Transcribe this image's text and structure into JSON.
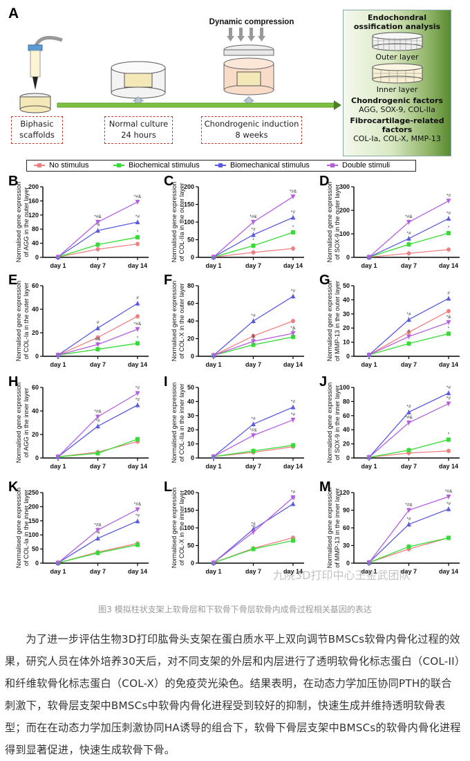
{
  "schematic": {
    "panel_label": "A",
    "title": "Dynamic  compression",
    "steps": [
      {
        "line1": "Biphasic",
        "line2": "scaffolds"
      },
      {
        "line1": "Normal culture",
        "line2": "24 hours"
      },
      {
        "line1": "Chondrogenic induction",
        "line2": "8 weeks"
      }
    ],
    "analysis": {
      "title_line1": "Endochondral",
      "title_line2": "ossification analysis",
      "outer_label": "Outer layer",
      "inner_label": "Inner layer",
      "chondro_title": "Chondrogenic factors",
      "chondro_list": "AGG, SOX-9, COL-IIa",
      "fibro_title_line1": "Fibrocartilage-related",
      "fibro_title_line2": "factors",
      "fibro_list": "COL-Ia, COL-X, MMP-13"
    },
    "colors": {
      "timeline": "#6aa83a",
      "box_border": "#c0392b",
      "analysis_dark": "#5b8a2f"
    }
  },
  "legend": [
    {
      "name": "No stimulus",
      "color": "#f08080",
      "marker": "circle"
    },
    {
      "name": "Biochemical stimulus",
      "color": "#33dd33",
      "marker": "square"
    },
    {
      "name": "Biomechanical stimulus",
      "color": "#5a5ae0",
      "marker": "triangle-up"
    },
    {
      "name": "Double stimuli",
      "color": "#b55ee0",
      "marker": "triangle-down"
    }
  ],
  "chart_data": [
    {
      "panel": "B",
      "type": "line",
      "ylabel": "Normalised gene expression of AGG in the outer layer",
      "categories": [
        "day 1",
        "day 7",
        "day 14"
      ],
      "ylim": [
        0,
        200
      ],
      "yticks": [
        0,
        40,
        80,
        120,
        160,
        200
      ],
      "series": [
        {
          "name": "No stimulus",
          "values": [
            1,
            23,
            38
          ],
          "annotations": [
            "",
            "",
            ""
          ]
        },
        {
          "name": "Biochemical stimulus",
          "values": [
            1,
            36,
            57
          ],
          "annotations": [
            "",
            "",
            "*"
          ]
        },
        {
          "name": "Biomechanical stimulus",
          "values": [
            1,
            76,
            100
          ],
          "annotations": [
            "",
            "*#",
            "*#"
          ]
        },
        {
          "name": "Double stimuli",
          "values": [
            1,
            100,
            157
          ],
          "annotations": [
            "",
            "*#&",
            "*#&"
          ]
        }
      ]
    },
    {
      "panel": "C",
      "type": "line",
      "ylabel": "Normalised gene expression of COL-IIa in the outer layer",
      "categories": [
        "day 1",
        "day 7",
        "day 14"
      ],
      "ylim": [
        0,
        200
      ],
      "yticks": [
        0,
        50,
        100,
        150,
        200
      ],
      "series": [
        {
          "name": "No stimulus",
          "values": [
            1,
            14,
            25
          ],
          "annotations": [
            "",
            "",
            ""
          ]
        },
        {
          "name": "Biochemical stimulus",
          "values": [
            1,
            33,
            71
          ],
          "annotations": [
            "",
            "*",
            "*"
          ]
        },
        {
          "name": "Biomechanical stimulus",
          "values": [
            1,
            64,
            113
          ],
          "annotations": [
            "",
            "*#",
            "*#"
          ]
        },
        {
          "name": "Double stimuli",
          "values": [
            1,
            100,
            172
          ],
          "annotations": [
            "",
            "*#&",
            "*#&"
          ]
        }
      ]
    },
    {
      "panel": "D",
      "type": "line",
      "ylabel": "Normalised gene expression of SOX-9 in the outer layer",
      "categories": [
        "day 1",
        "day 7",
        "day 14"
      ],
      "ylim": [
        0,
        300
      ],
      "yticks": [
        0,
        100,
        200,
        300
      ],
      "series": [
        {
          "name": "No stimulus",
          "values": [
            1,
            17,
            33
          ],
          "annotations": [
            "",
            "",
            ""
          ]
        },
        {
          "name": "Biochemical stimulus",
          "values": [
            1,
            55,
            103
          ],
          "annotations": [
            "",
            "*",
            "*"
          ]
        },
        {
          "name": "Biomechanical stimulus",
          "values": [
            1,
            80,
            165
          ],
          "annotations": [
            "",
            "*#",
            "*#"
          ]
        },
        {
          "name": "Double stimuli",
          "values": [
            1,
            150,
            240
          ],
          "annotations": [
            "",
            "*#&",
            "*#"
          ]
        }
      ]
    },
    {
      "panel": "E",
      "type": "line",
      "ylabel": "Normalised gene expression of COL-Ia in the outer layer",
      "categories": [
        "day 1",
        "day 7",
        "day 14"
      ],
      "ylim": [
        0,
        60
      ],
      "yticks": [
        0,
        20,
        40,
        60
      ],
      "series": [
        {
          "name": "No stimulus",
          "values": [
            1,
            16,
            34
          ],
          "annotations": [
            "",
            "",
            ""
          ]
        },
        {
          "name": "Biochemical stimulus",
          "values": [
            1,
            6,
            11
          ],
          "annotations": [
            "",
            "*",
            "*"
          ]
        },
        {
          "name": "Biomechanical stimulus",
          "values": [
            1,
            24,
            45
          ],
          "annotations": [
            "",
            "#",
            "#"
          ]
        },
        {
          "name": "Double stimuli",
          "values": [
            1,
            10,
            23
          ],
          "annotations": [
            "",
            "#&",
            "*#&"
          ]
        }
      ]
    },
    {
      "panel": "F",
      "type": "line",
      "ylabel": "Normalised gene expression of COL-X in the outer layer",
      "categories": [
        "day 1",
        "day 7",
        "day 14"
      ],
      "ylim": [
        0,
        80
      ],
      "yticks": [
        0,
        20,
        40,
        60,
        80
      ],
      "series": [
        {
          "name": "No stimulus",
          "values": [
            1,
            23,
            40
          ],
          "annotations": [
            "",
            "",
            ""
          ]
        },
        {
          "name": "Biochemical stimulus",
          "values": [
            1,
            13,
            22
          ],
          "annotations": [
            "",
            "*",
            "*"
          ]
        },
        {
          "name": "Biomechanical stimulus",
          "values": [
            1,
            40,
            68
          ],
          "annotations": [
            "",
            "*#",
            "*#"
          ]
        },
        {
          "name": "Double stimuli",
          "values": [
            1,
            17,
            26
          ],
          "annotations": [
            "",
            "&",
            "*&"
          ]
        }
      ]
    },
    {
      "panel": "G",
      "type": "line",
      "ylabel": "Normalised gene expression of MMP-13 in the outer layer",
      "categories": [
        "day 1",
        "day 7",
        "day 14"
      ],
      "ylim": [
        0,
        50
      ],
      "yticks": [
        0,
        10,
        20,
        30,
        40,
        50
      ],
      "series": [
        {
          "name": "No stimulus",
          "values": [
            1,
            17,
            32
          ],
          "annotations": [
            "",
            "",
            ""
          ]
        },
        {
          "name": "Biochemical stimulus",
          "values": [
            1,
            9,
            16
          ],
          "annotations": [
            "",
            "*",
            "*"
          ]
        },
        {
          "name": "Biomechanical stimulus",
          "values": [
            1,
            26,
            41
          ],
          "annotations": [
            "",
            "*#",
            "#"
          ]
        },
        {
          "name": "Double stimuli",
          "values": [
            1,
            14,
            24
          ],
          "annotations": [
            "",
            "#",
            "*&"
          ]
        }
      ]
    },
    {
      "panel": "H",
      "type": "line",
      "ylabel": "Normalised gene expression of AGG in the inner layer",
      "categories": [
        "day 1",
        "day 7",
        "day 14"
      ],
      "ylim": [
        0,
        60
      ],
      "yticks": [
        0,
        20,
        40,
        60
      ],
      "series": [
        {
          "name": "No stimulus",
          "values": [
            1,
            5,
            14
          ],
          "annotations": [
            "",
            "",
            ""
          ]
        },
        {
          "name": "Biochemical stimulus",
          "values": [
            1,
            4,
            16
          ],
          "annotations": [
            "",
            "",
            ""
          ]
        },
        {
          "name": "Biomechanical stimulus",
          "values": [
            1,
            27,
            45
          ],
          "annotations": [
            "",
            "*#",
            "*#"
          ]
        },
        {
          "name": "Double stimuli",
          "values": [
            1,
            35,
            55
          ],
          "annotations": [
            "",
            "*#&",
            "*#"
          ]
        }
      ]
    },
    {
      "panel": "I",
      "type": "line",
      "ylabel": "Normalised gene expression of COL-IIa in the inner layer",
      "categories": [
        "day 1",
        "day 7",
        "day 14"
      ],
      "ylim": [
        0,
        50
      ],
      "yticks": [
        0,
        10,
        20,
        30,
        40,
        50
      ],
      "series": [
        {
          "name": "No stimulus",
          "values": [
            1,
            4,
            8
          ],
          "annotations": [
            "",
            "",
            ""
          ]
        },
        {
          "name": "Biochemical stimulus",
          "values": [
            1,
            5,
            9
          ],
          "annotations": [
            "",
            "",
            ""
          ]
        },
        {
          "name": "Biomechanical stimulus",
          "values": [
            1,
            24,
            36
          ],
          "annotations": [
            "",
            "*#",
            "*#"
          ]
        },
        {
          "name": "Double stimuli",
          "values": [
            1,
            16,
            27
          ],
          "annotations": [
            "",
            "*#&",
            "*#"
          ]
        }
      ]
    },
    {
      "panel": "J",
      "type": "line",
      "ylabel": "Normalised gene expression of SOX-9 in the inner layer",
      "categories": [
        "day 1",
        "day 7",
        "day 14"
      ],
      "ylim": [
        0,
        100
      ],
      "yticks": [
        0,
        20,
        40,
        60,
        80,
        100
      ],
      "series": [
        {
          "name": "No stimulus",
          "values": [
            1,
            7,
            10
          ],
          "annotations": [
            "",
            "",
            ""
          ]
        },
        {
          "name": "Biochemical stimulus",
          "values": [
            1,
            11,
            26
          ],
          "annotations": [
            "",
            "",
            "*"
          ]
        },
        {
          "name": "Biomechanical stimulus",
          "values": [
            1,
            65,
            92
          ],
          "annotations": [
            "",
            "*#",
            "*#"
          ]
        },
        {
          "name": "Double stimuli",
          "values": [
            1,
            50,
            77
          ],
          "annotations": [
            "",
            "*#&",
            "*#"
          ]
        }
      ]
    },
    {
      "panel": "K",
      "type": "line",
      "ylabel": "Normalised gene expression of COL-Ia in the inner layer",
      "categories": [
        "day 1",
        "day 7",
        "day 14"
      ],
      "ylim": [
        0,
        250
      ],
      "yticks": [
        0,
        50,
        100,
        150,
        200,
        250
      ],
      "series": [
        {
          "name": "No stimulus",
          "values": [
            1,
            39,
            70
          ],
          "annotations": [
            "",
            "",
            ""
          ]
        },
        {
          "name": "Biochemical stimulus",
          "values": [
            1,
            36,
            65
          ],
          "annotations": [
            "",
            "",
            ""
          ]
        },
        {
          "name": "Biomechanical stimulus",
          "values": [
            1,
            88,
            149
          ],
          "annotations": [
            "",
            "*#",
            "*#"
          ]
        },
        {
          "name": "Double stimuli",
          "values": [
            1,
            117,
            190
          ],
          "annotations": [
            "",
            "*#&",
            "*#&"
          ]
        }
      ]
    },
    {
      "panel": "L",
      "type": "line",
      "ylabel": "Normalised gene expression of COL-X in the inner layer",
      "categories": [
        "day 1",
        "day 7",
        "day 14"
      ],
      "ylim": [
        0,
        200
      ],
      "yticks": [
        0,
        50,
        100,
        150,
        200
      ],
      "series": [
        {
          "name": "No stimulus",
          "values": [
            1,
            42,
            72
          ],
          "annotations": [
            "",
            "",
            ""
          ]
        },
        {
          "name": "Biochemical stimulus",
          "values": [
            1,
            40,
            64
          ],
          "annotations": [
            "",
            "",
            ""
          ]
        },
        {
          "name": "Biomechanical stimulus",
          "values": [
            1,
            96,
            168
          ],
          "annotations": [
            "",
            "*#",
            "*#"
          ]
        },
        {
          "name": "Double stimuli",
          "values": [
            1,
            88,
            186
          ],
          "annotations": [
            "",
            "*#",
            "*#"
          ]
        }
      ]
    },
    {
      "panel": "M",
      "type": "line",
      "ylabel": "Normalised gene expression of MMP-13 in the inner layer",
      "categories": [
        "day 1",
        "day 7",
        "day 14"
      ],
      "ylim": [
        0,
        120
      ],
      "yticks": [
        0,
        30,
        60,
        90,
        120
      ],
      "series": [
        {
          "name": "No stimulus",
          "values": [
            1,
            24,
            43
          ],
          "annotations": [
            "",
            "",
            ""
          ]
        },
        {
          "name": "Biochemical stimulus",
          "values": [
            1,
            28,
            43
          ],
          "annotations": [
            "",
            "",
            ""
          ]
        },
        {
          "name": "Biomechanical stimulus",
          "values": [
            1,
            66,
            92
          ],
          "annotations": [
            "",
            "*#",
            "*#"
          ]
        },
        {
          "name": "Double stimuli",
          "values": [
            1,
            90,
            113
          ],
          "annotations": [
            "",
            "*#&",
            "*#&"
          ]
        }
      ]
    }
  ],
  "watermark": "九院3D打印中心王金武团队",
  "caption": "图3 模拟柱状支架上软骨层和下软骨下骨层软骨内成骨过程相关基因的表达",
  "paragraph": "为了进一步评估生物3D打印肱骨头支架在蛋白质水平上双向调节BMSCs软骨内骨化过程的效果，研究人员在体外培养30天后，对不同支架的外层和内层进行了透明软骨化标志蛋白（COL-II）和纤维软骨化标志蛋白（COL-X）的免疫荧光染色。结果表明，在动态力学加压协同PTH的联合刺激下，软骨层支架中BMSCs中软骨内骨化进程受到较好的抑制，快速生成并维持透明软骨表型；而在在动态力学加压刺激协同HA诱导的组合下，软骨下骨层支架中BMSCs的软骨内骨化进程得到显著促进，快速生成软骨下骨。"
}
